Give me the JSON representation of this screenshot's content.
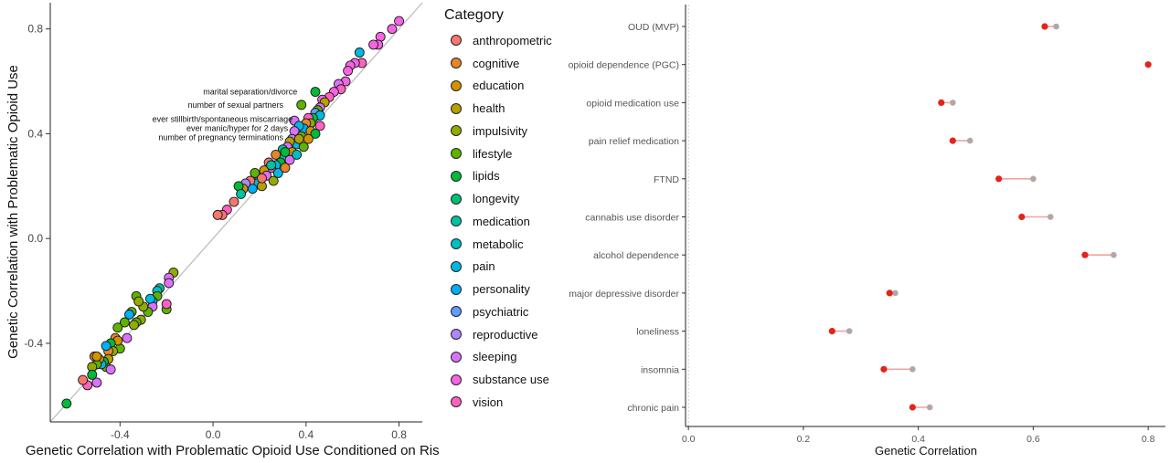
{
  "chart_data": [
    {
      "type": "scatter",
      "title": "",
      "xlabel": "Genetic Correlation with Problematic Opioid Use Conditioned on Risk",
      "ylabel": "Genetic Correlation with Problematic Opioid Use",
      "xlim": [
        -0.7,
        0.9
      ],
      "ylim": [
        -0.7,
        0.9
      ],
      "xticks": [
        "-0.4",
        "0.0",
        "0.4",
        "0.8"
      ],
      "yticks": [
        "-0.4",
        "0.0",
        "0.4",
        "0.8"
      ],
      "grid": false,
      "reference_line": "y = x",
      "legend": {
        "title": "Category",
        "placement": "right",
        "items": [
          {
            "label": "anthropometric",
            "color": "#F8766D"
          },
          {
            "label": "cognitive",
            "color": "#E88526"
          },
          {
            "label": "education",
            "color": "#D39200"
          },
          {
            "label": "health",
            "color": "#B79F00"
          },
          {
            "label": "impulsivity",
            "color": "#93AA00"
          },
          {
            "label": "lifestyle",
            "color": "#5EB300"
          },
          {
            "label": "lipids",
            "color": "#00BA38"
          },
          {
            "label": "longevity",
            "color": "#00BF74"
          },
          {
            "label": "medication",
            "color": "#00C19F"
          },
          {
            "label": "metabolic",
            "color": "#00BFC4"
          },
          {
            "label": "pain",
            "color": "#00B9E3"
          },
          {
            "label": "personality",
            "color": "#00ADFA"
          },
          {
            "label": "psychiatric",
            "color": "#619CFF"
          },
          {
            "label": "reproductive",
            "color": "#AE87FF"
          },
          {
            "label": "sleeping",
            "color": "#DB72FB"
          },
          {
            "label": "substance use",
            "color": "#F564E3"
          },
          {
            "label": "vision",
            "color": "#FF61C3"
          }
        ]
      },
      "annotations": [
        {
          "text": "marital separation/divorce",
          "x": 0.39,
          "y": 0.56
        },
        {
          "text": "number of sexual partners",
          "x": 0.33,
          "y": 0.51
        },
        {
          "text": "ever stillbirth/spontaneous miscarriage",
          "x": 0.37,
          "y": 0.455
        },
        {
          "text": "ever manic/hyper for 2 days",
          "x": 0.35,
          "y": 0.42
        },
        {
          "text": "number of pregnancy terminations",
          "x": 0.33,
          "y": 0.385
        }
      ],
      "points": [
        {
          "c": "substance use",
          "x": 0.8,
          "y": 0.83
        },
        {
          "c": "substance use",
          "x": 0.77,
          "y": 0.8
        },
        {
          "c": "substance use",
          "x": 0.72,
          "y": 0.77
        },
        {
          "c": "substance use",
          "x": 0.71,
          "y": 0.74
        },
        {
          "c": "substance use",
          "x": 0.69,
          "y": 0.74
        },
        {
          "c": "pain",
          "x": 0.63,
          "y": 0.71
        },
        {
          "c": "vision",
          "x": 0.64,
          "y": 0.67
        },
        {
          "c": "substance use",
          "x": 0.61,
          "y": 0.67
        },
        {
          "c": "substance use",
          "x": 0.59,
          "y": 0.66
        },
        {
          "c": "substance use",
          "x": 0.58,
          "y": 0.64
        },
        {
          "c": "substance use",
          "x": 0.57,
          "y": 0.6
        },
        {
          "c": "sleeping",
          "x": 0.54,
          "y": 0.59
        },
        {
          "c": "vision",
          "x": 0.55,
          "y": 0.57
        },
        {
          "c": "substance use",
          "x": 0.52,
          "y": 0.56
        },
        {
          "c": "lipids",
          "x": 0.44,
          "y": 0.56
        },
        {
          "c": "vision",
          "x": 0.5,
          "y": 0.54
        },
        {
          "c": "substance use",
          "x": 0.47,
          "y": 0.53
        },
        {
          "c": "health",
          "x": 0.48,
          "y": 0.52
        },
        {
          "c": "lifestyle",
          "x": 0.38,
          "y": 0.51
        },
        {
          "c": "sleeping",
          "x": 0.46,
          "y": 0.5
        },
        {
          "c": "lifestyle",
          "x": 0.45,
          "y": 0.49
        },
        {
          "c": "psychiatric",
          "x": 0.44,
          "y": 0.48
        },
        {
          "c": "pain",
          "x": 0.46,
          "y": 0.47
        },
        {
          "c": "lipids",
          "x": 0.43,
          "y": 0.46
        },
        {
          "c": "vision",
          "x": 0.41,
          "y": 0.46
        },
        {
          "c": "impulsivity",
          "x": 0.42,
          "y": 0.44
        },
        {
          "c": "cognitive",
          "x": 0.4,
          "y": 0.44
        },
        {
          "c": "sleeping",
          "x": 0.35,
          "y": 0.45
        },
        {
          "c": "personality",
          "x": 0.39,
          "y": 0.42
        },
        {
          "c": "pain",
          "x": 0.37,
          "y": 0.43
        },
        {
          "c": "education",
          "x": 0.42,
          "y": 0.41
        },
        {
          "c": "lipids",
          "x": 0.44,
          "y": 0.4
        },
        {
          "c": "sleeping",
          "x": 0.35,
          "y": 0.41
        },
        {
          "c": "reproductive",
          "x": 0.34,
          "y": 0.38
        },
        {
          "c": "lifestyle",
          "x": 0.38,
          "y": 0.39
        },
        {
          "c": "pain",
          "x": 0.36,
          "y": 0.36
        },
        {
          "c": "health",
          "x": 0.33,
          "y": 0.37
        },
        {
          "c": "sleeping",
          "x": 0.32,
          "y": 0.35
        },
        {
          "c": "medication",
          "x": 0.3,
          "y": 0.34
        },
        {
          "c": "education",
          "x": 0.34,
          "y": 0.33
        },
        {
          "c": "metabolic",
          "x": 0.3,
          "y": 0.31
        },
        {
          "c": "cognitive",
          "x": 0.27,
          "y": 0.32
        },
        {
          "c": "lipids",
          "x": 0.29,
          "y": 0.29
        },
        {
          "c": "pain",
          "x": 0.27,
          "y": 0.28
        },
        {
          "c": "anthropometric",
          "x": 0.24,
          "y": 0.29
        },
        {
          "c": "vision",
          "x": 0.25,
          "y": 0.27
        },
        {
          "c": "education",
          "x": 0.22,
          "y": 0.26
        },
        {
          "c": "sleeping",
          "x": 0.23,
          "y": 0.24
        },
        {
          "c": "metabolic",
          "x": 0.2,
          "y": 0.23
        },
        {
          "c": "lifestyle",
          "x": 0.18,
          "y": 0.25
        },
        {
          "c": "pain",
          "x": 0.19,
          "y": 0.21
        },
        {
          "c": "anthropometric",
          "x": 0.16,
          "y": 0.22
        },
        {
          "c": "personality",
          "x": 0.17,
          "y": 0.19
        },
        {
          "c": "reproductive",
          "x": 0.14,
          "y": 0.21
        },
        {
          "c": "education",
          "x": 0.13,
          "y": 0.19
        },
        {
          "c": "lipids",
          "x": 0.11,
          "y": 0.2
        },
        {
          "c": "medication",
          "x": 0.12,
          "y": 0.17
        },
        {
          "c": "anthropometric",
          "x": 0.09,
          "y": 0.14
        },
        {
          "c": "health",
          "x": 0.21,
          "y": 0.2
        },
        {
          "c": "impulsivity",
          "x": 0.26,
          "y": 0.22
        },
        {
          "c": "pain",
          "x": 0.28,
          "y": 0.25
        },
        {
          "c": "cognitive",
          "x": 0.31,
          "y": 0.27
        },
        {
          "c": "sleeping",
          "x": 0.33,
          "y": 0.3
        },
        {
          "c": "metabolic",
          "x": 0.36,
          "y": 0.32
        },
        {
          "c": "lifestyle",
          "x": 0.39,
          "y": 0.35
        },
        {
          "c": "education",
          "x": 0.41,
          "y": 0.38
        },
        {
          "c": "vision",
          "x": 0.46,
          "y": 0.43
        },
        {
          "c": "health",
          "x": 0.37,
          "y": 0.38
        },
        {
          "c": "lipids",
          "x": 0.31,
          "y": 0.33
        },
        {
          "c": "medication",
          "x": 0.25,
          "y": 0.28
        },
        {
          "c": "anthropometric",
          "x": 0.21,
          "y": 0.23
        },
        {
          "c": "vision",
          "x": 0.06,
          "y": 0.11
        },
        {
          "c": "anthropometric",
          "x": 0.04,
          "y": 0.09
        },
        {
          "c": "anthropometric",
          "x": 0.02,
          "y": 0.09
        },
        {
          "c": "impulsivity",
          "x": -0.17,
          "y": -0.13
        },
        {
          "c": "sleeping",
          "x": -0.19,
          "y": -0.15
        },
        {
          "c": "sleeping",
          "x": -0.19,
          "y": -0.17
        },
        {
          "c": "lifestyle",
          "x": -0.2,
          "y": -0.27
        },
        {
          "c": "vision",
          "x": -0.2,
          "y": -0.25
        },
        {
          "c": "medication",
          "x": -0.23,
          "y": -0.19
        },
        {
          "c": "metabolic",
          "x": -0.24,
          "y": -0.2
        },
        {
          "c": "lifestyle",
          "x": -0.24,
          "y": -0.22
        },
        {
          "c": "personality",
          "x": -0.26,
          "y": -0.24
        },
        {
          "c": "sleeping",
          "x": -0.26,
          "y": -0.26
        },
        {
          "c": "pain",
          "x": -0.27,
          "y": -0.23
        },
        {
          "c": "lifestyle",
          "x": -0.28,
          "y": -0.28
        },
        {
          "c": "impulsivity",
          "x": -0.3,
          "y": -0.26
        },
        {
          "c": "lifestyle",
          "x": -0.33,
          "y": -0.22
        },
        {
          "c": "impulsivity",
          "x": -0.32,
          "y": -0.24
        },
        {
          "c": "impulsivity",
          "x": -0.31,
          "y": -0.31
        },
        {
          "c": "lifestyle",
          "x": -0.33,
          "y": -0.32
        },
        {
          "c": "lifestyle",
          "x": -0.35,
          "y": -0.28
        },
        {
          "c": "impulsivity",
          "x": -0.34,
          "y": -0.33
        },
        {
          "c": "personality",
          "x": -0.36,
          "y": -0.29
        },
        {
          "c": "lifestyle",
          "x": -0.38,
          "y": -0.32
        },
        {
          "c": "lifestyle",
          "x": -0.4,
          "y": -0.42
        },
        {
          "c": "lifestyle",
          "x": -0.41,
          "y": -0.34
        },
        {
          "c": "sleeping",
          "x": -0.37,
          "y": -0.38
        },
        {
          "c": "cognitive",
          "x": -0.42,
          "y": -0.38
        },
        {
          "c": "education",
          "x": -0.41,
          "y": -0.39
        },
        {
          "c": "lipids",
          "x": -0.44,
          "y": -0.4
        },
        {
          "c": "impulsivity",
          "x": -0.43,
          "y": -0.43
        },
        {
          "c": "cognitive",
          "x": -0.45,
          "y": -0.43
        },
        {
          "c": "personality",
          "x": -0.46,
          "y": -0.41
        },
        {
          "c": "health",
          "x": -0.45,
          "y": -0.46
        },
        {
          "c": "lifestyle",
          "x": -0.46,
          "y": -0.49
        },
        {
          "c": "sleeping",
          "x": -0.44,
          "y": -0.5
        },
        {
          "c": "lipids",
          "x": -0.47,
          "y": -0.47
        },
        {
          "c": "pain",
          "x": -0.48,
          "y": -0.48
        },
        {
          "c": "education",
          "x": -0.49,
          "y": -0.46
        },
        {
          "c": "lifestyle",
          "x": -0.5,
          "y": -0.48
        },
        {
          "c": "cognitive",
          "x": -0.51,
          "y": -0.45
        },
        {
          "c": "education",
          "x": -0.5,
          "y": -0.45
        },
        {
          "c": "impulsivity",
          "x": -0.52,
          "y": -0.49
        },
        {
          "c": "lipids",
          "x": -0.52,
          "y": -0.52
        },
        {
          "c": "sleeping",
          "x": -0.5,
          "y": -0.55
        },
        {
          "c": "vision",
          "x": -0.54,
          "y": -0.56
        },
        {
          "c": "anthropometric",
          "x": -0.56,
          "y": -0.54
        },
        {
          "c": "lipids",
          "x": -0.63,
          "y": -0.63
        }
      ]
    },
    {
      "type": "dumbbell",
      "title": "",
      "xlabel": "Genetic Correlation",
      "ylabel": "",
      "xlim": [
        -0.005,
        0.83
      ],
      "xticks": [
        "0.0",
        "0.2",
        "0.4",
        "0.6",
        "0.8"
      ],
      "reference_x": 0,
      "colors": {
        "conditioned": "#E3241B",
        "unconditioned": "#B3A6A6",
        "segment": "#F2A3A0"
      },
      "categories": [
        "OUD (MVP)",
        "opioid dependence (PGC)",
        "opioid medication use",
        "pain relief medication",
        "FTND",
        "cannabis use disorder",
        "alcohol dependence",
        "major depressive disorder",
        "loneliness",
        "insomnia",
        "chronic pain"
      ],
      "conditioned": [
        0.62,
        0.8,
        0.44,
        0.46,
        0.54,
        0.58,
        0.69,
        0.35,
        0.25,
        0.34,
        0.39
      ],
      "unconditioned": [
        0.64,
        0.8,
        0.46,
        0.49,
        0.6,
        0.63,
        0.74,
        0.36,
        0.28,
        0.39,
        0.42
      ]
    }
  ]
}
